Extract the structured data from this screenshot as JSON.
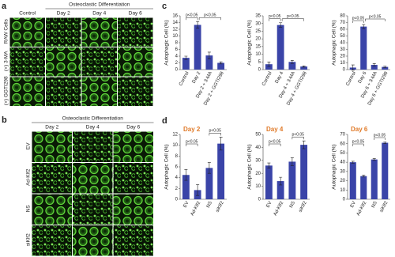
{
  "panel_a": {
    "label": "a",
    "header": "Osteoclastic Differentiation",
    "columns": [
      "Control",
      "Day 2",
      "Day 4",
      "Day 6"
    ],
    "rows": [
      "RAW Cells",
      "(+) 3-MA",
      "(+) GGTI298"
    ]
  },
  "panel_b": {
    "label": "b",
    "header": "Osteoclastic Differentiation",
    "columns": [
      "Day 2",
      "Day 4",
      "Day 6"
    ],
    "rows": [
      "EV",
      "Ad-Klf2",
      "NS",
      "siKlf2"
    ]
  },
  "panel_c": {
    "label": "c"
  },
  "panel_d": {
    "label": "d"
  },
  "chart_data": [
    {
      "type": "bar",
      "y_label": "Autophagic Cell (%)",
      "categories": [
        "Control",
        "Day 2",
        "Day 2 + 3-MA",
        "Day 2 + GGTI298"
      ],
      "values": [
        3.5,
        13.3,
        4.2,
        2.0
      ],
      "errors": [
        0.5,
        1,
        1,
        0.3
      ],
      "ylim": [
        0,
        16
      ],
      "yticks": [
        0,
        2,
        4,
        6,
        8,
        10,
        12,
        14,
        16
      ],
      "annotations": [
        "p<0.05",
        "p<0.05"
      ],
      "color": "#3a44a8"
    },
    {
      "type": "bar",
      "y_label": "Autophagic Cell (%)",
      "categories": [
        "Control",
        "Day 4",
        "Day 4 + 3-MA",
        "Day 4 + GGTI298"
      ],
      "values": [
        3.5,
        29,
        5,
        2
      ],
      "errors": [
        1.5,
        1.5,
        1,
        0.4
      ],
      "ylim": [
        0,
        35
      ],
      "yticks": [
        0,
        5,
        10,
        15,
        20,
        25,
        30,
        35
      ],
      "annotations": [
        "p<0.05",
        "p<0.05"
      ],
      "color": "#3a44a8"
    },
    {
      "type": "bar",
      "y_label": "Autophagic Cell (%)",
      "categories": [
        "Control",
        "Day 6",
        "Day 6 + 3-MA",
        "Day 6 + GGTI298"
      ],
      "values": [
        3,
        64,
        7,
        4
      ],
      "errors": [
        4,
        3,
        2,
        1
      ],
      "ylim": [
        0,
        80
      ],
      "yticks": [
        0,
        10,
        20,
        30,
        40,
        50,
        60,
        70,
        80
      ],
      "annotations": [
        "p<0.05",
        "p<0.05"
      ],
      "color": "#3a44a8"
    },
    {
      "type": "bar",
      "title": "Day 2",
      "y_label": "Autophagic Cell (%)",
      "categories": [
        "EV",
        "Ad-Klf2",
        "NS",
        "siKlf2"
      ],
      "values": [
        4.5,
        1.7,
        5.8,
        10.3
      ],
      "errors": [
        1,
        1,
        1,
        1.2
      ],
      "ylim": [
        0,
        12
      ],
      "yticks": [
        0,
        2,
        4,
        6,
        8,
        10,
        12
      ],
      "annotations": [
        "p<0.05",
        "p<0.05"
      ],
      "color": "#3a44a8"
    },
    {
      "type": "bar",
      "title": "Day 4",
      "y_label": "Autophagic Cell (%)",
      "categories": [
        "EV",
        "Ad-Klf2",
        "NS",
        "siKlf2"
      ],
      "values": [
        26,
        14,
        29,
        42
      ],
      "errors": [
        2,
        3,
        3,
        3
      ],
      "ylim": [
        0,
        50
      ],
      "yticks": [
        0,
        10,
        20,
        30,
        40,
        50
      ],
      "annotations": [
        "p<0.05",
        "p<0.05"
      ],
      "color": "#3a44a8"
    },
    {
      "type": "bar",
      "title": "Day 6",
      "y_label": "Autophagic Cell (%)",
      "categories": [
        "EV",
        "Ad-Klf2",
        "NS",
        "siKlf2"
      ],
      "values": [
        40,
        25,
        43,
        61
      ],
      "errors": [
        1,
        1,
        1,
        1
      ],
      "ylim": [
        0,
        70
      ],
      "yticks": [
        0,
        10,
        20,
        30,
        40,
        50,
        60,
        70
      ],
      "annotations": [
        "p<0.05",
        "p<0.05"
      ],
      "color": "#3a44a8"
    }
  ]
}
